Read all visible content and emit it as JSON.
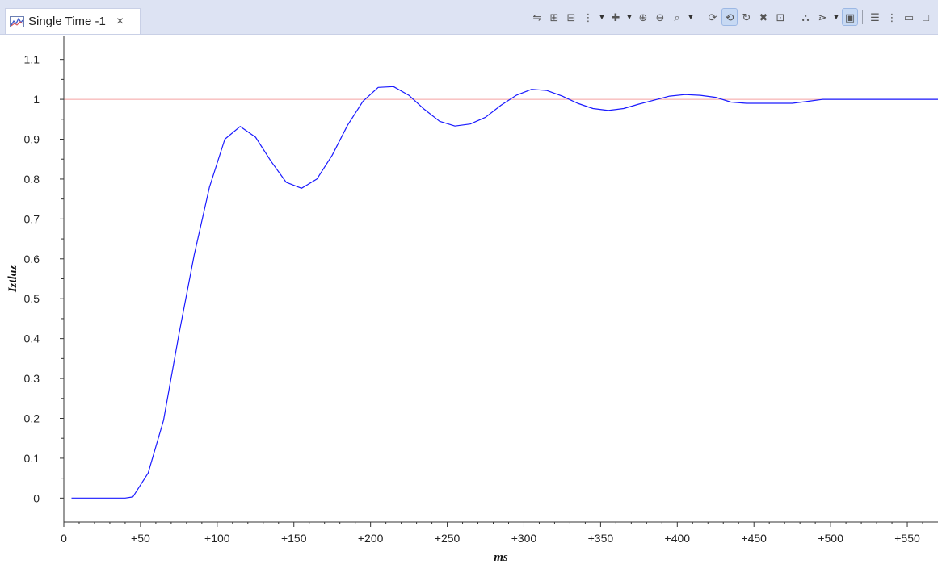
{
  "tab": {
    "title": "Single Time -1",
    "close_glyph": "×",
    "icon": "chart-icon"
  },
  "toolbar": {
    "buttons": [
      {
        "name": "auto-scale-icon",
        "glyph": "⇋",
        "active": false
      },
      {
        "name": "zoom-vertical-icon",
        "glyph": "⊞",
        "active": false
      },
      {
        "name": "zoom-horizontal-icon",
        "glyph": "⊟",
        "active": false
      },
      {
        "name": "marker-icon",
        "glyph": "⋮",
        "active": false,
        "dropdown": true
      },
      {
        "name": "add-trace-icon",
        "glyph": "✚",
        "active": false,
        "dropdown": true
      },
      {
        "name": "zoom-in-icon",
        "glyph": "⊕",
        "active": false
      },
      {
        "name": "zoom-out-icon",
        "glyph": "⊖",
        "active": false
      },
      {
        "name": "zoom-box-icon",
        "glyph": "⌕",
        "active": false,
        "dropdown": true,
        "sep_after": true
      },
      {
        "name": "sync-icon",
        "glyph": "⟳",
        "active": false
      },
      {
        "name": "sync-active-icon",
        "glyph": "⟲",
        "active": true
      },
      {
        "name": "refresh-icon",
        "glyph": "↻",
        "active": false
      },
      {
        "name": "delete-icon",
        "glyph": "✖",
        "active": false
      },
      {
        "name": "export-icon",
        "glyph": "⊡",
        "active": false,
        "sep_after": true
      },
      {
        "name": "binoculars-icon",
        "glyph": "⛬",
        "active": false
      },
      {
        "name": "filter-icon",
        "glyph": "⋗",
        "active": false,
        "dropdown": true
      },
      {
        "name": "lock-icon",
        "glyph": "▣",
        "active": true,
        "sep_after": true
      },
      {
        "name": "legend-icon",
        "glyph": "☰",
        "active": false
      },
      {
        "name": "view-menu-icon",
        "glyph": "⋮",
        "active": false
      },
      {
        "name": "minimize-icon",
        "glyph": "▭",
        "active": false
      },
      {
        "name": "maximize-icon",
        "glyph": "□",
        "active": false
      }
    ]
  },
  "colors": {
    "series": "#1a1aff",
    "reference_line": "#f5a0a0",
    "axis": "#333333",
    "tick_label": "#222222"
  },
  "chart_data": {
    "type": "line",
    "title": "",
    "xlabel": "ms",
    "ylabel": "Iztlaz",
    "xlim": [
      0,
      570
    ],
    "ylim": [
      -0.06,
      1.16
    ],
    "x_ticks": [
      0,
      50,
      100,
      150,
      200,
      250,
      300,
      350,
      400,
      450,
      500,
      550
    ],
    "x_tick_labels": [
      "0",
      "+50",
      "+100",
      "+150",
      "+200",
      "+250",
      "+300",
      "+350",
      "+400",
      "+450",
      "+500",
      "+550"
    ],
    "y_ticks": [
      0,
      0.1,
      0.2,
      0.3,
      0.4,
      0.5,
      0.6,
      0.7,
      0.8,
      0.9,
      1,
      1.1
    ],
    "y_tick_labels": [
      "0",
      "0.1",
      "0.2",
      "0.3",
      "0.4",
      "0.5",
      "0.6",
      "0.7",
      "0.8",
      "0.9",
      "1",
      "1.1"
    ],
    "reference_line": {
      "y": 1
    },
    "grid": false,
    "legend": "none",
    "series": [
      {
        "x": [
          5,
          40,
          45,
          55,
          65,
          75,
          85,
          95,
          105,
          115,
          125,
          135,
          145,
          155,
          165,
          175,
          185,
          195,
          205,
          215,
          225,
          235,
          245,
          255,
          265,
          275,
          285,
          295,
          305,
          315,
          325,
          335,
          345,
          355,
          365,
          375,
          385,
          395,
          405,
          415,
          425,
          435,
          445,
          455,
          465,
          475,
          485,
          495,
          505,
          515,
          525,
          535,
          545,
          555,
          570
        ],
        "y": [
          0,
          0,
          0.003,
          0.063,
          0.195,
          0.41,
          0.61,
          0.78,
          0.9,
          0.932,
          0.905,
          0.845,
          0.792,
          0.777,
          0.8,
          0.86,
          0.935,
          0.995,
          1.03,
          1.032,
          1.01,
          0.975,
          0.945,
          0.933,
          0.938,
          0.955,
          0.985,
          1.01,
          1.025,
          1.022,
          1.008,
          0.99,
          0.977,
          0.972,
          0.977,
          0.988,
          0.998,
          1.008,
          1.012,
          1.01,
          1.005,
          0.993,
          0.99,
          0.99,
          0.99,
          0.99,
          0.995,
          1.0,
          1.0,
          1.0,
          1.0,
          1.0,
          1.0,
          1.0,
          1.0
        ]
      }
    ]
  }
}
